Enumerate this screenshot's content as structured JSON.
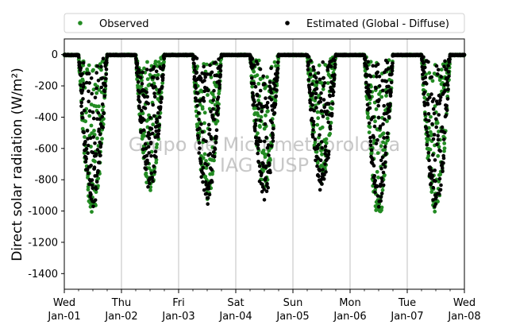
{
  "chart_data": {
    "type": "scatter",
    "title": "",
    "xlabel": "",
    "ylabel": "Direct solar radiation (W/m²)",
    "ylim": [
      -1500,
      100
    ],
    "xlim_days": [
      0,
      7
    ],
    "yticks": [
      0,
      -200,
      -400,
      -600,
      -800,
      -1000,
      -1200,
      -1400
    ],
    "xticks": [
      {
        "day": "Wed",
        "date": "Jan-01"
      },
      {
        "day": "Thu",
        "date": "Jan-02"
      },
      {
        "day": "Fri",
        "date": "Jan-03"
      },
      {
        "day": "Sat",
        "date": "Jan-04"
      },
      {
        "day": "Sun",
        "date": "Jan-05"
      },
      {
        "day": "Mon",
        "date": "Jan-06"
      },
      {
        "day": "Tue",
        "date": "Jan-07"
      },
      {
        "day": "Wed",
        "date": "Jan-08"
      }
    ],
    "grid": "vertical-major",
    "legend_placement": "top",
    "watermark": [
      "Grupo de Micrometeorologia",
      "IAG / USP"
    ],
    "series": [
      {
        "name": "Observed",
        "color": "#228b22",
        "daily_envelope_min": [
          -1025,
          -880,
          -940,
          -860,
          -830,
          -1040,
          -1010
        ],
        "daily_mean_min": [
          -560,
          -170,
          -330,
          -300,
          -250,
          -420,
          -460
        ]
      },
      {
        "name": "Estimated (Global - Diffuse)",
        "color": "#000000",
        "daily_envelope_min": [
          -975,
          -870,
          -960,
          -930,
          -880,
          -975,
          -990
        ],
        "daily_mean_min": [
          -520,
          -180,
          -420,
          -420,
          -330,
          -430,
          -530
        ]
      }
    ]
  }
}
